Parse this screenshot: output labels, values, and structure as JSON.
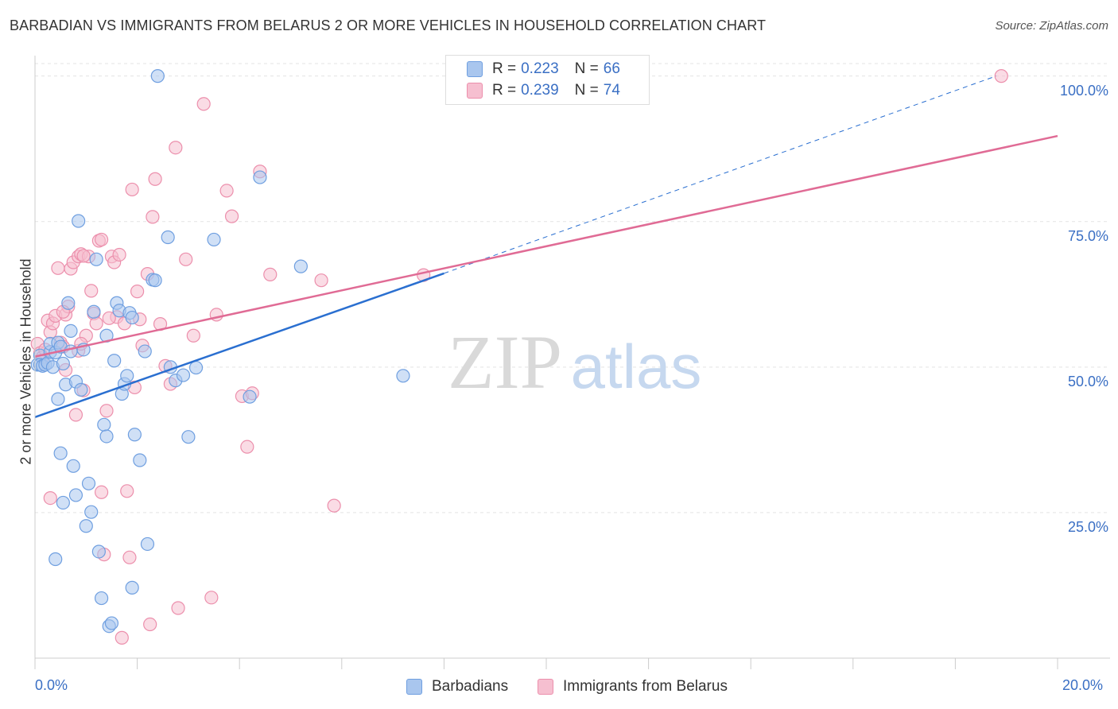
{
  "title": "BARBADIAN VS IMMIGRANTS FROM BELARUS 2 OR MORE VEHICLES IN HOUSEHOLD CORRELATION CHART",
  "source": "Source: ZipAtlas.com",
  "watermark": {
    "zip": "ZIP",
    "atlas": "atlas"
  },
  "colors": {
    "blue_fill": "#a9c6ee",
    "blue_stroke": "#6f9fe0",
    "blue_line": "#2a6fd0",
    "pink_fill": "#f6bfd0",
    "pink_stroke": "#ec8fac",
    "pink_line": "#e06b95",
    "grid": "#e3e3e3",
    "axis_text": "#3a6fc4"
  },
  "legend": {
    "rows": [
      {
        "r_label": "R =",
        "r_value": "0.223",
        "n_label": "N =",
        "n_value": "66"
      },
      {
        "r_label": "R =",
        "r_value": "0.239",
        "n_label": "N =",
        "n_value": "74"
      }
    ]
  },
  "bottom_legend": {
    "series1": "Barbadians",
    "series2": "Immigrants from Belarus"
  },
  "chart_data": {
    "type": "scatter",
    "xlabel": "",
    "ylabel": "2 or more Vehicles in Household",
    "xlim": [
      0,
      20
    ],
    "ylim": [
      0,
      103.5
    ],
    "x_tick_labels": {
      "min": "0.0%",
      "max": "20.0%"
    },
    "y_ticks": [
      {
        "value": 25,
        "label": "25.0%"
      },
      {
        "value": 50,
        "label": "50.0%"
      },
      {
        "value": 75,
        "label": "75.0%"
      },
      {
        "value": 100,
        "label": "100.0%"
      }
    ],
    "series": [
      {
        "name": "Barbadians",
        "trend": {
          "x0": 0,
          "y0": 41.4,
          "x1": 8.0,
          "y1": 66.1,
          "dashed_to_x": 18.8,
          "dashed_to_y": 100.0
        },
        "points": [
          [
            0.05,
            50.4
          ],
          [
            0.1,
            52.0
          ],
          [
            0.1,
            50.4
          ],
          [
            0.15,
            50.2
          ],
          [
            0.2,
            50.4
          ],
          [
            0.25,
            50.7
          ],
          [
            0.3,
            52.6
          ],
          [
            0.3,
            54.0
          ],
          [
            0.35,
            50.0
          ],
          [
            0.4,
            52.5
          ],
          [
            0.45,
            54.2
          ],
          [
            0.5,
            53.5
          ],
          [
            0.55,
            50.6
          ],
          [
            0.6,
            47.0
          ],
          [
            0.65,
            61.0
          ],
          [
            0.7,
            52.7
          ],
          [
            0.7,
            56.2
          ],
          [
            0.75,
            33.0
          ],
          [
            0.8,
            28.0
          ],
          [
            0.8,
            47.5
          ],
          [
            0.85,
            75.1
          ],
          [
            0.9,
            46.1
          ],
          [
            0.95,
            53.0
          ],
          [
            1.0,
            22.7
          ],
          [
            1.05,
            30.0
          ],
          [
            1.1,
            25.1
          ],
          [
            1.15,
            59.5
          ],
          [
            1.2,
            68.5
          ],
          [
            1.25,
            18.3
          ],
          [
            1.3,
            10.3
          ],
          [
            1.35,
            40.1
          ],
          [
            1.4,
            38.1
          ],
          [
            1.4,
            55.4
          ],
          [
            1.45,
            5.5
          ],
          [
            1.5,
            6.0
          ],
          [
            1.55,
            51.1
          ],
          [
            1.6,
            61.0
          ],
          [
            1.65,
            59.7
          ],
          [
            1.7,
            45.4
          ],
          [
            1.75,
            47.1
          ],
          [
            1.8,
            48.5
          ],
          [
            1.85,
            59.3
          ],
          [
            1.9,
            58.5
          ],
          [
            1.9,
            12.1
          ],
          [
            1.95,
            38.4
          ],
          [
            2.05,
            34.0
          ],
          [
            2.15,
            52.7
          ],
          [
            2.2,
            19.6
          ],
          [
            2.3,
            65.0
          ],
          [
            2.35,
            64.9
          ],
          [
            2.4,
            100.0
          ],
          [
            2.6,
            72.3
          ],
          [
            2.65,
            50.0
          ],
          [
            2.75,
            47.7
          ],
          [
            2.9,
            48.6
          ],
          [
            3.0,
            38.0
          ],
          [
            3.15,
            49.9
          ],
          [
            3.5,
            71.9
          ],
          [
            4.2,
            44.9
          ],
          [
            4.4,
            82.6
          ],
          [
            5.2,
            67.3
          ],
          [
            7.2,
            48.5
          ],
          [
            0.4,
            17.0
          ],
          [
            0.45,
            44.5
          ],
          [
            0.5,
            35.2
          ],
          [
            0.55,
            26.7
          ]
        ]
      },
      {
        "name": "Immigrants from Belarus",
        "trend": {
          "x0": 0,
          "y0": 51.8,
          "x1": 20,
          "y1": 89.7
        },
        "points": [
          [
            0.05,
            54.0
          ],
          [
            0.1,
            52.4
          ],
          [
            0.15,
            51.7
          ],
          [
            0.2,
            53.0
          ],
          [
            0.25,
            58.0
          ],
          [
            0.3,
            56.0
          ],
          [
            0.3,
            27.5
          ],
          [
            0.35,
            57.5
          ],
          [
            0.4,
            58.8
          ],
          [
            0.45,
            67.0
          ],
          [
            0.5,
            54.2
          ],
          [
            0.55,
            53.5
          ],
          [
            0.6,
            59.0
          ],
          [
            0.6,
            49.5
          ],
          [
            0.65,
            60.4
          ],
          [
            0.7,
            66.9
          ],
          [
            0.75,
            68.0
          ],
          [
            0.8,
            41.8
          ],
          [
            0.85,
            69.0
          ],
          [
            0.9,
            69.4
          ],
          [
            0.95,
            46.0
          ],
          [
            1.0,
            55.4
          ],
          [
            1.05,
            69.0
          ],
          [
            1.1,
            63.1
          ],
          [
            1.15,
            59.2
          ],
          [
            1.2,
            57.5
          ],
          [
            1.25,
            71.7
          ],
          [
            1.3,
            71.9
          ],
          [
            1.3,
            28.5
          ],
          [
            1.35,
            17.8
          ],
          [
            1.4,
            42.5
          ],
          [
            1.5,
            69.0
          ],
          [
            1.55,
            68.0
          ],
          [
            1.6,
            58.6
          ],
          [
            1.65,
            69.3
          ],
          [
            1.7,
            3.5
          ],
          [
            1.75,
            57.5
          ],
          [
            1.8,
            28.7
          ],
          [
            1.85,
            17.3
          ],
          [
            1.9,
            80.5
          ],
          [
            1.95,
            46.5
          ],
          [
            2.0,
            63.0
          ],
          [
            2.1,
            53.7
          ],
          [
            2.2,
            66.0
          ],
          [
            2.25,
            5.8
          ],
          [
            2.3,
            75.8
          ],
          [
            2.35,
            82.3
          ],
          [
            2.45,
            57.4
          ],
          [
            2.55,
            50.2
          ],
          [
            2.65,
            47.1
          ],
          [
            2.75,
            87.7
          ],
          [
            2.8,
            8.6
          ],
          [
            2.95,
            68.5
          ],
          [
            3.1,
            55.4
          ],
          [
            3.3,
            95.2
          ],
          [
            3.45,
            10.4
          ],
          [
            3.55,
            59.0
          ],
          [
            3.75,
            80.3
          ],
          [
            3.85,
            75.9
          ],
          [
            4.05,
            45.0
          ],
          [
            4.15,
            36.3
          ],
          [
            4.25,
            45.5
          ],
          [
            4.4,
            83.6
          ],
          [
            4.6,
            65.9
          ],
          [
            5.6,
            64.9
          ],
          [
            5.85,
            26.2
          ],
          [
            7.6,
            65.8
          ],
          [
            18.9,
            100.0
          ],
          [
            0.55,
            59.5
          ],
          [
            0.85,
            52.8
          ],
          [
            0.95,
            69.1
          ],
          [
            1.45,
            58.4
          ],
          [
            2.05,
            58.2
          ],
          [
            0.9,
            54.0
          ]
        ]
      }
    ]
  }
}
